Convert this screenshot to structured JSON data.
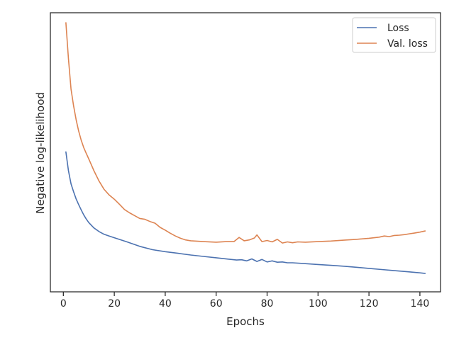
{
  "chart_data": {
    "type": "line",
    "title": "",
    "xlabel": "Epochs",
    "ylabel": "Negative log-likelihood",
    "xlim": [
      -5.1,
      148.1
    ],
    "ylim": [
      0,
      100
    ],
    "x_ticks": [
      0,
      20,
      40,
      60,
      80,
      100,
      120,
      140
    ],
    "y_ticks_visible": false,
    "grid": false,
    "legend_position": "top-right",
    "series": [
      {
        "name": "Loss",
        "color": "#4c72b0",
        "points": [
          [
            1,
            50.1
          ],
          [
            2,
            43.4
          ],
          [
            3,
            38.7
          ],
          [
            4,
            35.9
          ],
          [
            5,
            33.3
          ],
          [
            6,
            31.3
          ],
          [
            7,
            29.4
          ],
          [
            8,
            27.6
          ],
          [
            9,
            26.1
          ],
          [
            10,
            24.8
          ],
          [
            12,
            22.9
          ],
          [
            14,
            21.6
          ],
          [
            16,
            20.6
          ],
          [
            18,
            20.0
          ],
          [
            20,
            19.4
          ],
          [
            25,
            17.9
          ],
          [
            30,
            16.3
          ],
          [
            35,
            15.1
          ],
          [
            40,
            14.4
          ],
          [
            45,
            13.8
          ],
          [
            50,
            13.2
          ],
          [
            55,
            12.7
          ],
          [
            60,
            12.2
          ],
          [
            65,
            11.7
          ],
          [
            68,
            11.4
          ],
          [
            70,
            11.5
          ],
          [
            72,
            11.1
          ],
          [
            74,
            11.8
          ],
          [
            76,
            10.9
          ],
          [
            78,
            11.6
          ],
          [
            80,
            10.7
          ],
          [
            82,
            11.1
          ],
          [
            84,
            10.6
          ],
          [
            86,
            10.7
          ],
          [
            88,
            10.4
          ],
          [
            90,
            10.4
          ],
          [
            95,
            10.1
          ],
          [
            100,
            9.8
          ],
          [
            105,
            9.5
          ],
          [
            110,
            9.2
          ],
          [
            115,
            8.8
          ],
          [
            120,
            8.4
          ],
          [
            125,
            8.0
          ],
          [
            130,
            7.6
          ],
          [
            135,
            7.2
          ],
          [
            140,
            6.8
          ],
          [
            142,
            6.6
          ]
        ]
      },
      {
        "name": "Val. loss",
        "color": "#dd8452",
        "points": [
          [
            1,
            96.4
          ],
          [
            2,
            83.5
          ],
          [
            3,
            72.7
          ],
          [
            4,
            66.7
          ],
          [
            5,
            61.7
          ],
          [
            6,
            57.7
          ],
          [
            7,
            54.4
          ],
          [
            8,
            51.7
          ],
          [
            9,
            49.6
          ],
          [
            10,
            47.6
          ],
          [
            12,
            43.4
          ],
          [
            14,
            39.7
          ],
          [
            16,
            36.7
          ],
          [
            18,
            34.7
          ],
          [
            20,
            33.2
          ],
          [
            22,
            31.4
          ],
          [
            24,
            29.5
          ],
          [
            26,
            28.3
          ],
          [
            28,
            27.3
          ],
          [
            30,
            26.3
          ],
          [
            32,
            26.0
          ],
          [
            34,
            25.2
          ],
          [
            36,
            24.6
          ],
          [
            38,
            23.1
          ],
          [
            40,
            22.1
          ],
          [
            42,
            21.0
          ],
          [
            44,
            20.0
          ],
          [
            46,
            19.2
          ],
          [
            48,
            18.6
          ],
          [
            50,
            18.3
          ],
          [
            55,
            18.0
          ],
          [
            60,
            17.8
          ],
          [
            64,
            18.0
          ],
          [
            67,
            18.0
          ],
          [
            69,
            19.5
          ],
          [
            71,
            18.3
          ],
          [
            73,
            18.6
          ],
          [
            75,
            19.3
          ],
          [
            76,
            20.4
          ],
          [
            78,
            18.0
          ],
          [
            80,
            18.4
          ],
          [
            82,
            17.9
          ],
          [
            84,
            18.8
          ],
          [
            86,
            17.5
          ],
          [
            88,
            17.9
          ],
          [
            90,
            17.6
          ],
          [
            92,
            17.9
          ],
          [
            95,
            17.8
          ],
          [
            100,
            18.0
          ],
          [
            105,
            18.2
          ],
          [
            110,
            18.5
          ],
          [
            115,
            18.8
          ],
          [
            120,
            19.2
          ],
          [
            124,
            19.6
          ],
          [
            126,
            20.0
          ],
          [
            128,
            19.8
          ],
          [
            130,
            20.2
          ],
          [
            132,
            20.3
          ],
          [
            134,
            20.5
          ],
          [
            136,
            20.8
          ],
          [
            138,
            21.1
          ],
          [
            140,
            21.4
          ],
          [
            142,
            21.8
          ]
        ]
      }
    ]
  }
}
